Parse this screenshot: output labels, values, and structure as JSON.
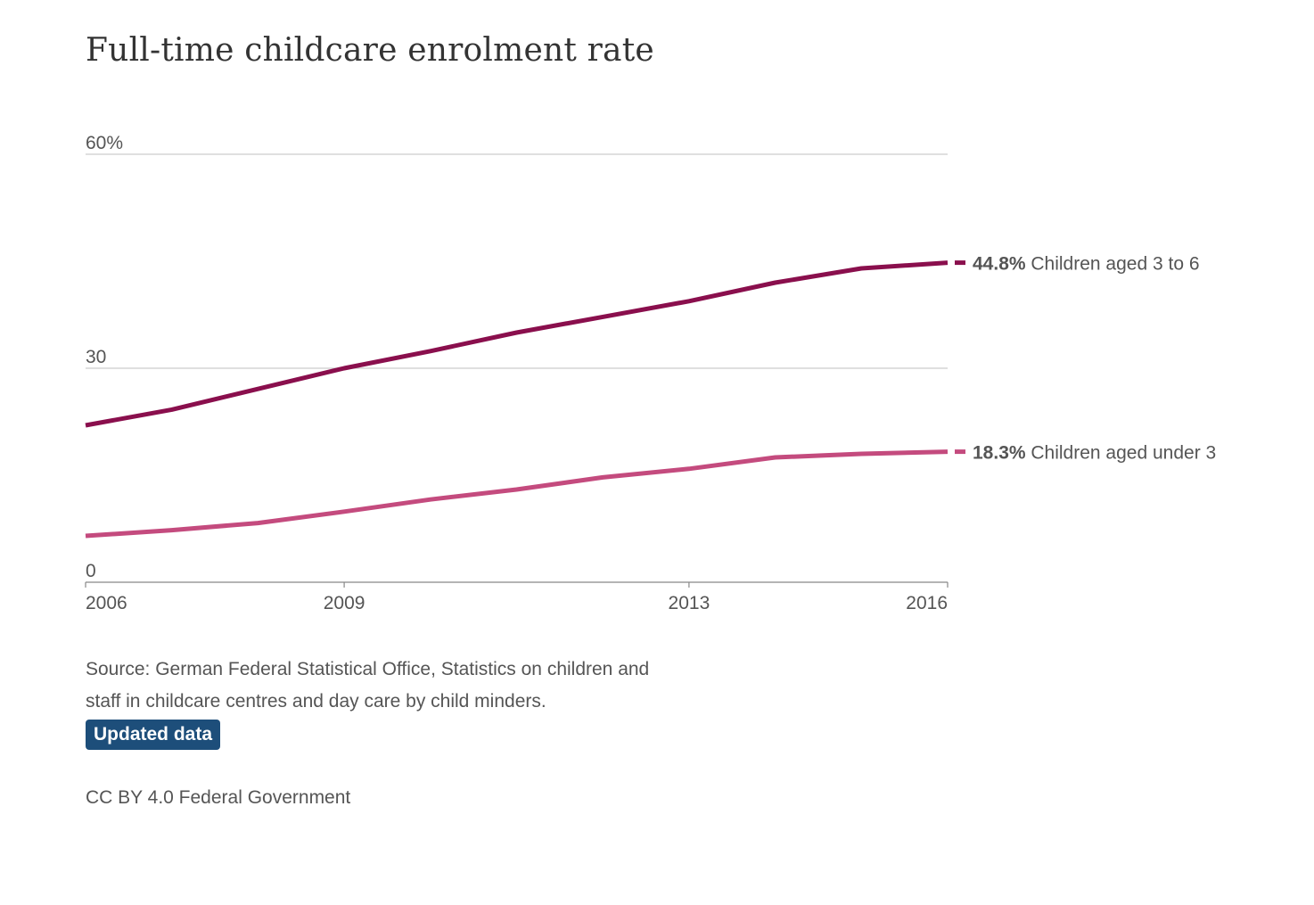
{
  "title": "Full-time childcare enrolment rate",
  "chart_data": {
    "type": "line",
    "title": "Full-time childcare enrolment rate",
    "x": [
      2006,
      2007,
      2008,
      2009,
      2010,
      2011,
      2012,
      2013,
      2014,
      2015,
      2016
    ],
    "x_ticks": [
      "2006",
      "2009",
      "2013",
      "2016"
    ],
    "y_ticks": [
      "0",
      "30",
      "60%"
    ],
    "y_tick_values": [
      0,
      30,
      60
    ],
    "ylim": [
      0,
      60
    ],
    "xlim": [
      2006,
      2016
    ],
    "grid": true,
    "series": [
      {
        "name": "Children aged 3 to 6",
        "values": [
          22.0,
          24.2,
          27.1,
          30.0,
          32.4,
          35.0,
          37.2,
          39.4,
          42.0,
          44.0,
          44.8
        ],
        "end_label_value": "44.8%",
        "color": "#8a0f4d"
      },
      {
        "name": "Children aged under 3",
        "values": [
          6.5,
          7.3,
          8.3,
          9.9,
          11.6,
          13.0,
          14.7,
          15.9,
          17.5,
          18.0,
          18.3
        ],
        "end_label_value": "18.3%",
        "color": "#c44b7e"
      }
    ]
  },
  "footer": {
    "source": "Source: German Federal Statistical Office, Statistics on children and staff in childcare centres and day care by child minders.",
    "updated_label": "Updated data",
    "updated_color": "#1d4e7a",
    "license": "CC BY 4.0 Federal Government"
  }
}
